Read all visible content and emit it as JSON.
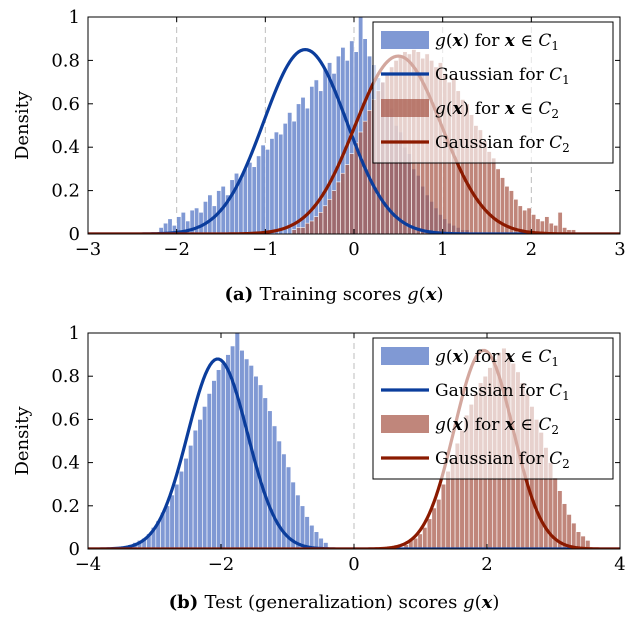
{
  "chart_data": [
    {
      "type": "bar",
      "caption_tag": "(a)",
      "caption_text": "Training scores g(x)",
      "ylabel": "Density",
      "xlim": [
        -3,
        3
      ],
      "ylim": [
        0,
        1
      ],
      "xticks": [
        "−3",
        "−2",
        "−1",
        "0",
        "1",
        "2",
        "3"
      ],
      "yticks": [
        "0",
        "0.2",
        "0.4",
        "0.6",
        "0.8",
        "1"
      ],
      "dashed_x": [
        -2,
        -1,
        0,
        1,
        2
      ],
      "legend": [
        {
          "label": "g(x) for x ∈ C1",
          "kind": "hist",
          "color": "#4f72c4"
        },
        {
          "label": "Gaussian for C1",
          "kind": "line",
          "color": "#0b3d9c"
        },
        {
          "label": "g(x) for x ∈ C2",
          "kind": "hist",
          "color": "#a85848"
        },
        {
          "label": "Gaussian for C2",
          "kind": "line",
          "color": "#8b1a00"
        }
      ],
      "legend_position": "top-right",
      "series": [
        {
          "name": "C1 histogram",
          "kind": "hist",
          "color": "#4f72c4",
          "bin_start": -2.2,
          "bin_width": 0.05,
          "values": [
            0.03,
            0.05,
            0.07,
            0.04,
            0.08,
            0.1,
            0.06,
            0.11,
            0.12,
            0.1,
            0.15,
            0.18,
            0.13,
            0.2,
            0.22,
            0.18,
            0.25,
            0.28,
            0.26,
            0.3,
            0.33,
            0.31,
            0.36,
            0.41,
            0.39,
            0.44,
            0.47,
            0.46,
            0.51,
            0.56,
            0.52,
            0.6,
            0.63,
            0.58,
            0.68,
            0.71,
            0.66,
            0.76,
            0.79,
            0.74,
            0.82,
            0.86,
            0.8,
            0.89,
            0.84,
            1.0,
            0.9,
            0.82,
            0.78,
            0.72,
            0.7,
            0.62,
            0.58,
            0.5,
            0.47,
            0.4,
            0.37,
            0.3,
            0.27,
            0.22,
            0.18,
            0.15,
            0.12,
            0.09,
            0.07,
            0.05,
            0.04,
            0.03,
            0.02,
            0.02
          ]
        },
        {
          "name": "C1 Gaussian",
          "kind": "gaussian",
          "color": "#0b3d9c",
          "mu": -0.55,
          "sigma": 0.47,
          "peak": 0.85
        },
        {
          "name": "C2 histogram",
          "kind": "hist",
          "color": "#a85848",
          "bin_start": -0.7,
          "bin_width": 0.05,
          "values": [
            0.02,
            0.03,
            0.03,
            0.05,
            0.06,
            0.08,
            0.1,
            0.13,
            0.16,
            0.2,
            0.24,
            0.28,
            0.32,
            0.37,
            0.42,
            0.47,
            0.52,
            0.57,
            0.62,
            0.66,
            0.7,
            0.74,
            0.77,
            0.8,
            0.82,
            0.84,
            0.83,
            0.85,
            0.84,
            0.81,
            0.83,
            0.8,
            0.77,
            0.79,
            0.74,
            0.7,
            0.72,
            0.66,
            0.62,
            0.6,
            0.55,
            0.5,
            0.48,
            0.43,
            0.38,
            0.35,
            0.3,
            0.26,
            0.22,
            0.2,
            0.16,
            0.13,
            0.11,
            0.12,
            0.09,
            0.07,
            0.06,
            0.08,
            0.05,
            0.04,
            0.1,
            0.03,
            0.02,
            0.02
          ]
        },
        {
          "name": "C2 Gaussian",
          "kind": "gaussian",
          "color": "#8b1a00",
          "mu": 0.5,
          "sigma": 0.49,
          "peak": 0.82
        }
      ]
    },
    {
      "type": "bar",
      "caption_tag": "(b)",
      "caption_text": "Test (generalization) scores g(x)",
      "ylabel": "Density",
      "xlim": [
        -4,
        4
      ],
      "ylim": [
        0,
        1
      ],
      "xticks": [
        "−4",
        "−2",
        "0",
        "2",
        "4"
      ],
      "yticks": [
        "0",
        "0.2",
        "0.4",
        "0.6",
        "0.8",
        "1"
      ],
      "dashed_x": [
        0
      ],
      "legend": [
        {
          "label": "g(x) for x ∈ C1",
          "kind": "hist",
          "color": "#4f72c4"
        },
        {
          "label": "Gaussian for C1",
          "kind": "line",
          "color": "#0b3d9c"
        },
        {
          "label": "g(x) for x ∈ C2",
          "kind": "hist",
          "color": "#a85848"
        },
        {
          "label": "Gaussian for C2",
          "kind": "line",
          "color": "#8b1a00"
        }
      ],
      "legend_position": "top-right",
      "series": [
        {
          "name": "C1 histogram",
          "kind": "hist",
          "color": "#4f72c4",
          "bin_start": -3.4,
          "bin_width": 0.07,
          "values": [
            0.02,
            0.03,
            0.04,
            0.05,
            0.07,
            0.1,
            0.13,
            0.17,
            0.2,
            0.25,
            0.3,
            0.36,
            0.42,
            0.48,
            0.55,
            0.6,
            0.66,
            0.72,
            0.78,
            0.83,
            0.86,
            0.9,
            0.94,
            1.0,
            0.92,
            0.88,
            0.85,
            0.8,
            0.76,
            0.7,
            0.64,
            0.57,
            0.5,
            0.44,
            0.38,
            0.31,
            0.25,
            0.2,
            0.15,
            0.11,
            0.08,
            0.05,
            0.03
          ]
        },
        {
          "name": "C1 Gaussian",
          "kind": "gaussian",
          "color": "#0b3d9c",
          "mu": -2.05,
          "sigma": 0.45,
          "peak": 0.88
        },
        {
          "name": "C2 histogram",
          "kind": "hist",
          "color": "#a85848",
          "bin_start": 0.75,
          "bin_width": 0.07,
          "values": [
            0.02,
            0.04,
            0.05,
            0.07,
            0.1,
            0.14,
            0.19,
            0.23,
            0.3,
            0.36,
            0.42,
            0.49,
            0.55,
            0.62,
            0.67,
            0.72,
            0.77,
            0.8,
            0.84,
            0.88,
            0.91,
            0.93,
            0.9,
            0.86,
            0.82,
            0.77,
            0.72,
            0.66,
            0.6,
            0.54,
            0.47,
            0.4,
            0.33,
            0.27,
            0.21,
            0.16,
            0.12,
            0.08,
            0.06,
            0.04
          ]
        },
        {
          "name": "C2 Gaussian",
          "kind": "gaussian",
          "color": "#8b1a00",
          "mu": 1.95,
          "sigma": 0.44,
          "peak": 0.92
        }
      ]
    }
  ]
}
